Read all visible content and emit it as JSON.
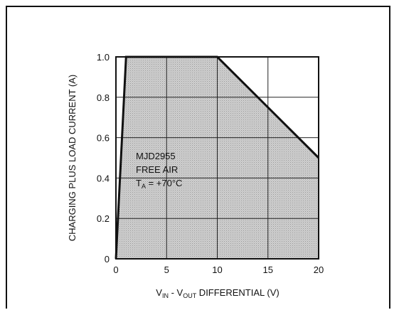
{
  "chart_data": {
    "type": "area",
    "title": "",
    "xlabel": {
      "v": "V",
      "in_sub": "IN",
      "dash": " - V",
      "out_sub": "OUT",
      "rest": " DIFFERENTIAL (V)"
    },
    "ylabel": "CHARGING PLUS LOAD CURRENT (A)",
    "xlim": [
      0,
      20
    ],
    "ylim": [
      0,
      1.0
    ],
    "xticks": [
      "0",
      "5",
      "10",
      "15",
      "20"
    ],
    "yticks": [
      "0",
      "0.2",
      "0.4",
      "0.6",
      "0.8",
      "1.0"
    ],
    "grid": true,
    "series": [
      {
        "x": [
          0,
          1.0,
          10,
          20
        ],
        "y": [
          0,
          1.0,
          1.0,
          0.5
        ]
      }
    ],
    "annotation": {
      "line1": "MJD2955",
      "line2": "FREE AIR",
      "line3_t": "T",
      "line3_sub": "A",
      "line3_rest": " = +70°C"
    },
    "fill_color": "#c8c8c8",
    "line_color": "#111111"
  }
}
